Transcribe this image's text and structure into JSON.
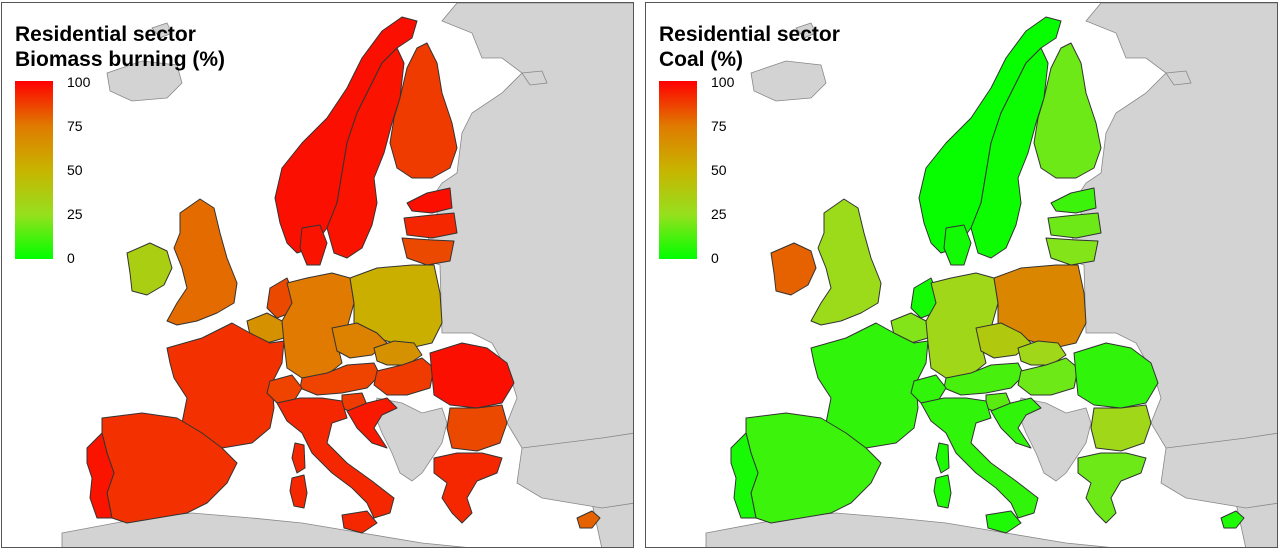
{
  "panels": [
    {
      "title_line1": "Residential sector",
      "title_line2": "Biomass burning (%)",
      "legend_ticks": [
        "100",
        "75",
        "50",
        "25",
        "0"
      ],
      "countries": {
        "norway": 97,
        "sweden": 96,
        "finland": 88,
        "estonia": 97,
        "latvia": 92,
        "lithuania": 85,
        "denmark": 96,
        "uk": 78,
        "ireland": 35,
        "netherlands": 85,
        "belgium": 65,
        "france": 90,
        "germany": 75,
        "poland": 52,
        "czechia": 72,
        "slovakia": 65,
        "austria": 86,
        "switzerland": 86,
        "hungary": 88,
        "romania": 97,
        "bulgaria": 85,
        "slovenia": 88,
        "croatia": 95,
        "italy": 92,
        "spain": 90,
        "portugal": 96,
        "greece": 92,
        "cyprus": 80,
        "corsica": 92,
        "sardinia": 92,
        "sicily": 92
      },
      "colors": {
        "ocean": "#ffffff",
        "non_eu_land": "#d3d3d3",
        "borders": "#333333"
      }
    },
    {
      "title_line1": "Residential sector",
      "title_line2": "Coal (%)",
      "legend_ticks": [
        "100",
        "75",
        "50",
        "25",
        "0"
      ],
      "countries": {
        "norway": 1,
        "sweden": 2,
        "finland": 18,
        "estonia": 10,
        "latvia": 18,
        "lithuania": 22,
        "denmark": 3,
        "uk": 28,
        "ireland": 80,
        "netherlands": 3,
        "belgium": 22,
        "france": 8,
        "germany": 30,
        "poland": 70,
        "czechia": 38,
        "slovakia": 30,
        "austria": 12,
        "switzerland": 8,
        "hungary": 18,
        "romania": 8,
        "bulgaria": 30,
        "slovenia": 15,
        "croatia": 8,
        "italy": 8,
        "spain": 10,
        "portugal": 4,
        "greece": 18,
        "cyprus": 5,
        "corsica": 5,
        "sardinia": 5,
        "sicily": 5
      },
      "colors": {
        "ocean": "#ffffff",
        "non_eu_land": "#d3d3d3",
        "borders": "#333333"
      }
    }
  ]
}
